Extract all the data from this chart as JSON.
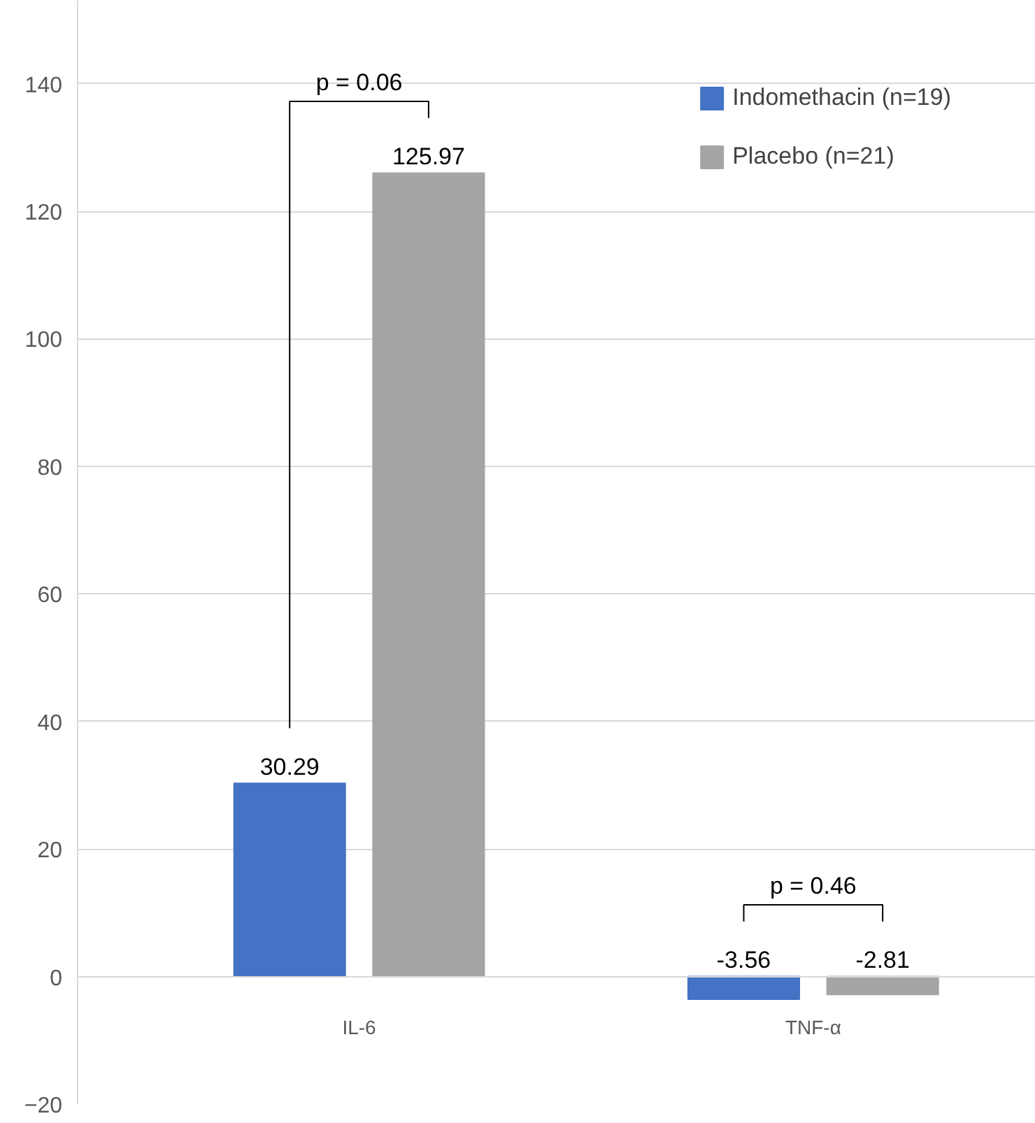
{
  "chart_data": {
    "type": "bar",
    "categories": [
      "IL-6",
      "TNF-α"
    ],
    "series": [
      {
        "name": "Indomethacin (n=19)",
        "color": "#4472c4",
        "values": [
          30.29,
          -3.56
        ]
      },
      {
        "name": "Placebo (n=21)",
        "color": "#a5a5a5",
        "values": [
          125.97,
          -2.81
        ]
      }
    ],
    "ylim": [
      -20,
      153
    ],
    "yticks": [
      -20,
      0,
      20,
      40,
      60,
      80,
      100,
      120,
      140
    ],
    "grid": "y",
    "legend": "top right",
    "data_labels": true,
    "annotations": [
      "p = 0.06",
      "p = 0.46"
    ]
  }
}
